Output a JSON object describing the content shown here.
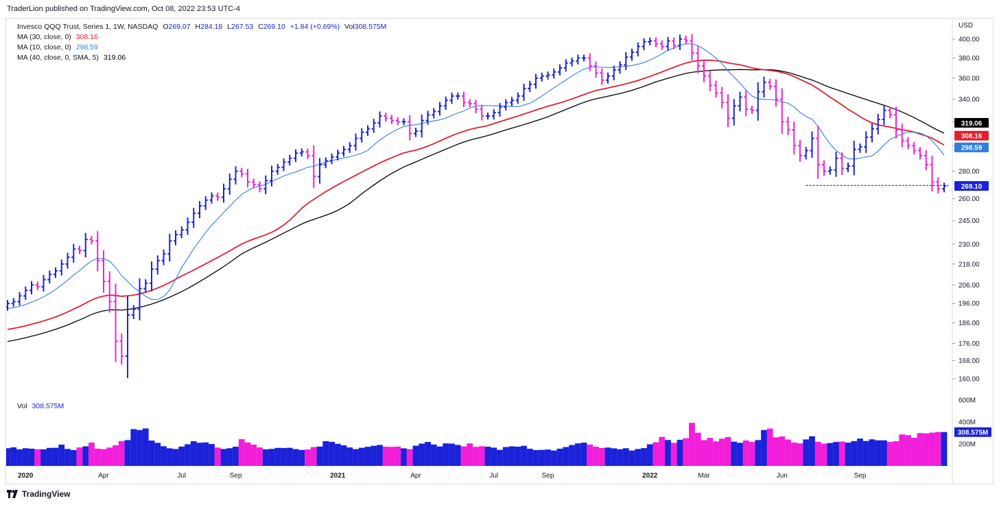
{
  "header": {
    "publisher": "TraderLion published on TradingView.com, Oct 08, 2022 23:53 UTC-4"
  },
  "legend": {
    "symbol": "Invesco QQQ Trust, Series 1, 1W, NASDAQ",
    "o_label": "O",
    "o": "269.07",
    "h_label": "H",
    "h": "284.18",
    "l_label": "L",
    "l": "267.53",
    "c_label": "C",
    "c": "269.10",
    "change": "+1.84 (+0.69%)",
    "vol_label": "Vol",
    "vol": "308.575M",
    "ma30_label": "MA (30, close, 0)",
    "ma30": "308.16",
    "ma10_label": "MA (10, close, 0)",
    "ma10": "298.59",
    "ma40_label": "MA (40, close, 0, SMA, 5)",
    "ma40": "319.06",
    "vol_pane_label": "Vol",
    "vol_pane_value": "308.575M"
  },
  "footer": {
    "brand": "TradingView"
  },
  "colors": {
    "up": "#1b22d9",
    "down": "#f21ed9",
    "ma10": "#2f7fe0",
    "ma30": "#e0202c",
    "ma40": "#000000",
    "grid_text": "#131722"
  },
  "chart_data": {
    "type": "ohlc",
    "interval": "1W",
    "currency": "USD",
    "y_scale": "log",
    "ylim": [
      155,
      415
    ],
    "y_ticks": [
      160,
      168,
      176,
      186,
      196,
      206,
      218,
      230,
      245,
      260,
      280,
      300,
      320,
      340,
      360,
      380,
      400
    ],
    "y_tick_labels": [
      "160.00",
      "168.00",
      "176.00",
      "186.00",
      "196.00",
      "206.00",
      "218.00",
      "230.00",
      "245.00",
      "260.00",
      "280.00",
      "300.00",
      "320.00",
      "340.00",
      "360.00",
      "380.00",
      "400.00"
    ],
    "x_labels": [
      {
        "label": "2020",
        "bar": 3
      },
      {
        "label": "Apr",
        "bar": 16
      },
      {
        "label": "Jul",
        "bar": 29
      },
      {
        "label": "Sep",
        "bar": 38
      },
      {
        "label": "2021",
        "bar": 55
      },
      {
        "label": "Apr",
        "bar": 68
      },
      {
        "label": "Jul",
        "bar": 81
      },
      {
        "label": "Sep",
        "bar": 90
      },
      {
        "label": "2022",
        "bar": 107
      },
      {
        "label": "Mar",
        "bar": 116
      },
      {
        "label": "Jun",
        "bar": 129
      },
      {
        "label": "Sep",
        "bar": 142
      }
    ],
    "price_labels": [
      {
        "name": "MA 40",
        "value": "319.06",
        "bg": "#000000",
        "fg": "#ffffff",
        "y": 319.06
      },
      {
        "name": "MA 30",
        "value": "308.16",
        "bg": "#e0202c",
        "fg": "#ffffff",
        "y": 308.16
      },
      {
        "name": "MA 10",
        "value": "298.59",
        "bg": "#2f7fe0",
        "fg": "#ffffff",
        "y": 298.59
      },
      {
        "name": "Close",
        "value": "269.10",
        "bg": "#1b22d9",
        "fg": "#ffffff",
        "y": 269.1
      }
    ],
    "vol_ticks": [
      {
        "label": "600M",
        "value": 600
      },
      {
        "label": "400M",
        "value": 400
      },
      {
        "label": "200M",
        "value": 200
      }
    ],
    "vol_label_current": "308.575M",
    "support_level": 269.5,
    "support_from_bar": 133,
    "close": [
      196,
      197,
      200,
      203,
      206,
      205,
      209,
      212,
      214,
      218,
      222,
      227,
      226,
      233,
      232,
      220,
      208,
      197,
      177,
      170,
      190,
      193,
      204,
      207,
      215,
      220,
      224,
      232,
      236,
      239,
      244,
      250,
      255,
      259,
      262,
      261,
      267,
      274,
      280,
      278,
      272,
      270,
      267,
      273,
      280,
      283,
      287,
      290,
      294,
      295,
      292,
      276,
      285,
      288,
      291,
      294,
      297,
      300,
      306,
      311,
      314,
      319,
      325,
      323,
      321,
      320,
      320,
      310,
      312,
      321,
      326,
      329,
      334,
      339,
      343,
      343,
      337,
      336,
      331,
      325,
      325,
      328,
      333,
      337,
      339,
      343,
      350,
      354,
      360,
      362,
      363,
      366,
      370,
      375,
      377,
      380,
      380,
      372,
      365,
      358,
      362,
      368,
      373,
      381,
      386,
      392,
      397,
      398,
      395,
      392,
      398,
      393,
      400,
      398,
      385,
      372,
      362,
      353,
      346,
      337,
      323,
      334,
      342,
      331,
      330,
      347,
      356,
      352,
      340,
      320,
      313,
      300,
      292,
      296,
      306,
      285,
      280,
      281,
      290,
      282,
      284,
      297,
      299,
      307,
      314,
      322,
      330,
      326,
      313,
      304,
      300,
      296,
      292,
      285,
      272,
      267,
      269
    ],
    "volume": [
      161,
      169,
      151,
      161,
      157,
      152,
      151,
      164,
      165,
      194,
      154,
      144,
      168,
      178,
      212,
      157,
      153,
      167,
      188,
      227,
      235,
      335,
      327,
      341,
      231,
      210,
      179,
      160,
      154,
      176,
      197,
      225,
      211,
      214,
      199,
      167,
      154,
      161,
      175,
      243,
      213,
      194,
      168,
      151,
      155,
      164,
      163,
      165,
      153,
      145,
      150,
      171,
      176,
      225,
      219,
      201,
      187,
      168,
      153,
      165,
      174,
      183,
      191,
      175,
      173,
      176,
      160,
      153,
      184,
      203,
      218,
      195,
      177,
      205,
      203,
      191,
      178,
      204,
      173,
      179,
      175,
      166,
      146,
      172,
      178,
      175,
      183,
      156,
      144,
      146,
      149,
      140,
      157,
      172,
      190,
      205,
      212,
      194,
      175,
      163,
      167,
      160,
      152,
      161,
      140,
      154,
      162,
      197,
      215,
      264,
      236,
      210,
      238,
      252,
      392,
      302,
      234,
      255,
      223,
      248,
      263,
      221,
      210,
      232,
      218,
      235,
      327,
      340,
      260,
      268,
      240,
      213,
      205,
      241,
      270,
      220,
      203,
      208,
      218,
      222,
      212,
      226,
      249,
      227,
      242,
      233,
      233,
      218,
      225,
      286,
      280,
      256,
      299,
      296,
      303,
      309,
      308
    ]
  }
}
